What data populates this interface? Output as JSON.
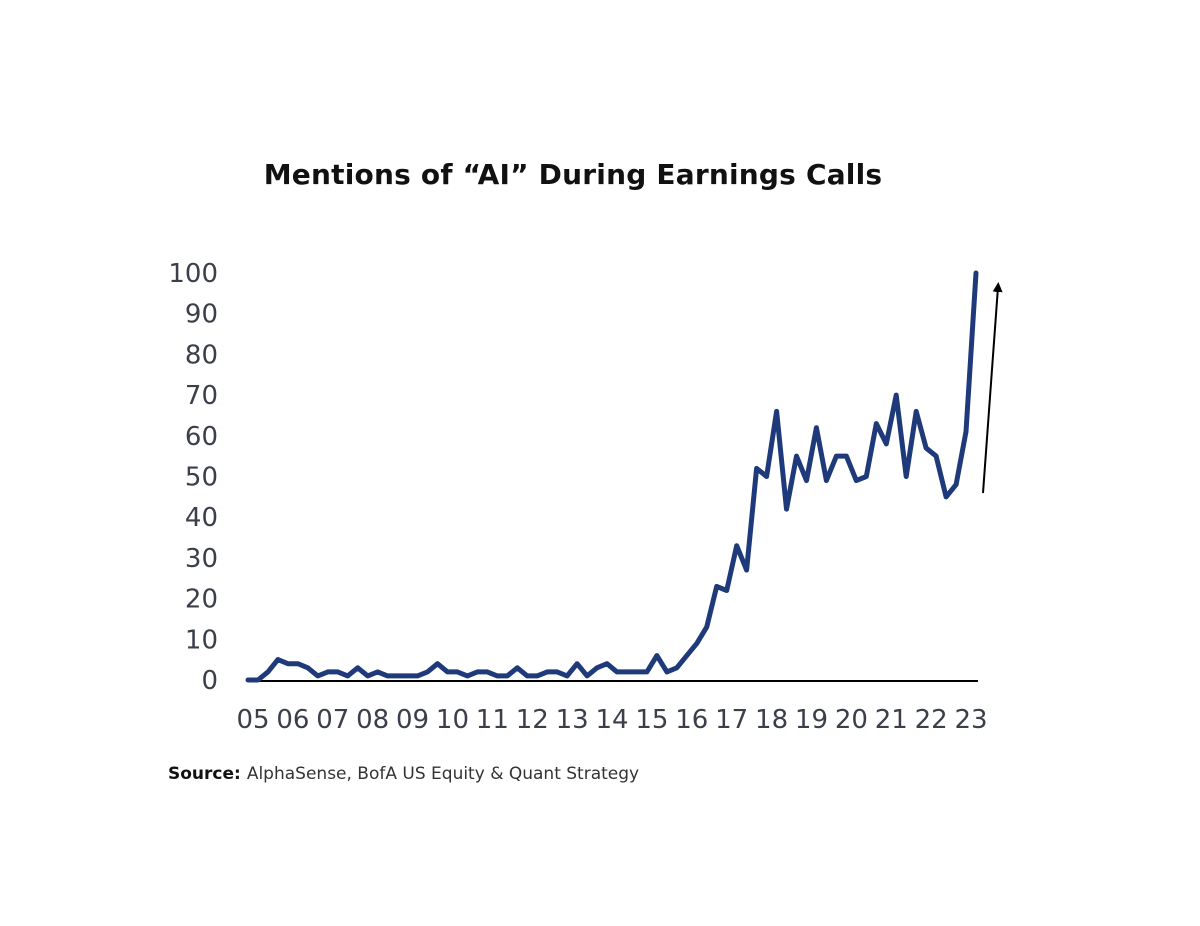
{
  "chart_data": {
    "type": "line",
    "title": "Mentions of “AI” During Earnings Calls",
    "xlabel": "",
    "ylabel": "",
    "ylim": [
      0,
      100
    ],
    "yticks": [
      0,
      10,
      20,
      30,
      40,
      50,
      60,
      70,
      80,
      90,
      100
    ],
    "xlim": [
      2005,
      2023.3
    ],
    "xticks": [
      {
        "value": 2005,
        "label": "05"
      },
      {
        "value": 2006,
        "label": "06"
      },
      {
        "value": 2007,
        "label": "07"
      },
      {
        "value": 2008,
        "label": "08"
      },
      {
        "value": 2009,
        "label": "09"
      },
      {
        "value": 2010,
        "label": "10"
      },
      {
        "value": 2011,
        "label": "11"
      },
      {
        "value": 2012,
        "label": "12"
      },
      {
        "value": 2013,
        "label": "13"
      },
      {
        "value": 2014,
        "label": "14"
      },
      {
        "value": 2015,
        "label": "15"
      },
      {
        "value": 2016,
        "label": "16"
      },
      {
        "value": 2017,
        "label": "17"
      },
      {
        "value": 2018,
        "label": "18"
      },
      {
        "value": 2019,
        "label": "19"
      },
      {
        "value": 2020,
        "label": "20"
      },
      {
        "value": 2021,
        "label": "21"
      },
      {
        "value": 2022,
        "label": "22"
      },
      {
        "value": 2023,
        "label": "23"
      }
    ],
    "grid": false,
    "line_color": "#1f3a7a",
    "annotation": "upward arrow beside the final spike",
    "series": [
      {
        "points": [
          [
            2005.0,
            0
          ],
          [
            2005.25,
            0
          ],
          [
            2005.5,
            2
          ],
          [
            2005.75,
            5
          ],
          [
            2006.0,
            4
          ],
          [
            2006.25,
            4
          ],
          [
            2006.5,
            3
          ],
          [
            2006.75,
            1
          ],
          [
            2007.0,
            2
          ],
          [
            2007.25,
            2
          ],
          [
            2007.5,
            1
          ],
          [
            2007.75,
            3
          ],
          [
            2008.0,
            1
          ],
          [
            2008.25,
            2
          ],
          [
            2008.5,
            1
          ],
          [
            2008.75,
            1
          ],
          [
            2009.0,
            1
          ],
          [
            2009.25,
            1
          ],
          [
            2009.5,
            2
          ],
          [
            2009.75,
            4
          ],
          [
            2010.0,
            2
          ],
          [
            2010.25,
            2
          ],
          [
            2010.5,
            1
          ],
          [
            2010.75,
            2
          ],
          [
            2011.0,
            2
          ],
          [
            2011.25,
            1
          ],
          [
            2011.5,
            1
          ],
          [
            2011.75,
            3
          ],
          [
            2012.0,
            1
          ],
          [
            2012.25,
            1
          ],
          [
            2012.5,
            2
          ],
          [
            2012.75,
            2
          ],
          [
            2013.0,
            1
          ],
          [
            2013.25,
            4
          ],
          [
            2013.5,
            1
          ],
          [
            2013.75,
            3
          ],
          [
            2014.0,
            4
          ],
          [
            2014.25,
            2
          ],
          [
            2014.5,
            2
          ],
          [
            2014.75,
            2
          ],
          [
            2015.0,
            2
          ],
          [
            2015.25,
            6
          ],
          [
            2015.5,
            2
          ],
          [
            2015.75,
            3
          ],
          [
            2016.0,
            6
          ],
          [
            2016.25,
            9
          ],
          [
            2016.5,
            13
          ],
          [
            2016.75,
            23
          ],
          [
            2017.0,
            22
          ],
          [
            2017.25,
            33
          ],
          [
            2017.5,
            27
          ],
          [
            2017.75,
            52
          ],
          [
            2018.0,
            50
          ],
          [
            2018.25,
            66
          ],
          [
            2018.5,
            42
          ],
          [
            2018.75,
            55
          ],
          [
            2019.0,
            49
          ],
          [
            2019.25,
            62
          ],
          [
            2019.5,
            49
          ],
          [
            2019.75,
            55
          ],
          [
            2020.0,
            55
          ],
          [
            2020.25,
            49
          ],
          [
            2020.5,
            50
          ],
          [
            2020.75,
            63
          ],
          [
            2021.0,
            58
          ],
          [
            2021.25,
            70
          ],
          [
            2021.5,
            50
          ],
          [
            2021.75,
            66
          ],
          [
            2022.0,
            57
          ],
          [
            2022.25,
            55
          ],
          [
            2022.5,
            45
          ],
          [
            2022.75,
            48
          ],
          [
            2023.0,
            61
          ],
          [
            2023.25,
            100
          ]
        ]
      }
    ]
  },
  "source": {
    "label": "Source:",
    "text": "AlphaSense, BofA US Equity & Quant Strategy"
  }
}
